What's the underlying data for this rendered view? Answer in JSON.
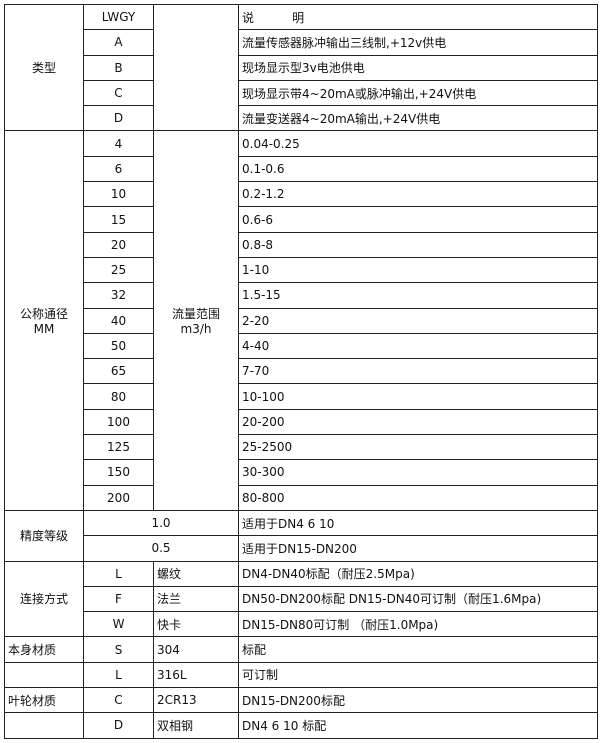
{
  "header": {
    "model": "LWGY",
    "desc": "说          明"
  },
  "type": {
    "label": "类型",
    "rows": [
      {
        "code": "A",
        "desc": "流量传感器脉冲输出三线制,+12v供电"
      },
      {
        "code": "B",
        "desc": "现场显示型3v电池供电"
      },
      {
        "code": "C",
        "desc": "现场显示带4~20mA或脉冲输出,+24V供电"
      },
      {
        "code": "D",
        "desc": "流量变送器4~20mA输出,+24V供电"
      }
    ]
  },
  "diameter": {
    "label": "公称通径",
    "unit": "MM",
    "range_label": "流量范围",
    "range_unit": "m3/h",
    "rows": [
      {
        "dn": "4",
        "range": "0.04-0.25"
      },
      {
        "dn": "6",
        "range": "0.1-0.6"
      },
      {
        "dn": "10",
        "range": "0.2-1.2"
      },
      {
        "dn": "15",
        "range": "0.6-6"
      },
      {
        "dn": "20",
        "range": "0.8-8"
      },
      {
        "dn": "25",
        "range": "1-10"
      },
      {
        "dn": "32",
        "range": "1.5-15"
      },
      {
        "dn": "40",
        "range": "2-20"
      },
      {
        "dn": "50",
        "range": "4-40"
      },
      {
        "dn": "65",
        "range": "7-70"
      },
      {
        "dn": "80",
        "range": "10-100"
      },
      {
        "dn": "100",
        "range": "20-200"
      },
      {
        "dn": "125",
        "range": "25-2500"
      },
      {
        "dn": "150",
        "range": "30-300"
      },
      {
        "dn": "200",
        "range": "80-800"
      }
    ]
  },
  "accuracy": {
    "label": "精度等级",
    "rows": [
      {
        "grade": "1.0",
        "desc": "适用于DN4  6  10"
      },
      {
        "grade": "0.5",
        "desc": "适用于DN15-DN200"
      }
    ]
  },
  "connection": {
    "label": "连接方式",
    "rows": [
      {
        "code": "L",
        "name": "螺纹",
        "desc": "DN4-DN40标配（耐压2.5Mpa)"
      },
      {
        "code": "F",
        "name": "法兰",
        "desc": "DN50-DN200标配 DN15-DN40可订制（耐压1.6Mpa)"
      },
      {
        "code": "W",
        "name": "快卡",
        "desc": "DN15-DN80可订制 （耐压1.0Mpa)"
      }
    ]
  },
  "body_material": {
    "label": "本身材质",
    "rows": [
      {
        "code": "S",
        "name": "304",
        "desc": "标配"
      },
      {
        "code": "L",
        "name": "316L",
        "desc": "可订制"
      }
    ]
  },
  "impeller_material": {
    "label": "叶轮材质",
    "rows": [
      {
        "code": "C",
        "name": "2CR13",
        "desc": "DN15-DN200标配"
      },
      {
        "code": "D",
        "name": "双相钢",
        "desc": "DN4 6 10 标配"
      }
    ]
  }
}
